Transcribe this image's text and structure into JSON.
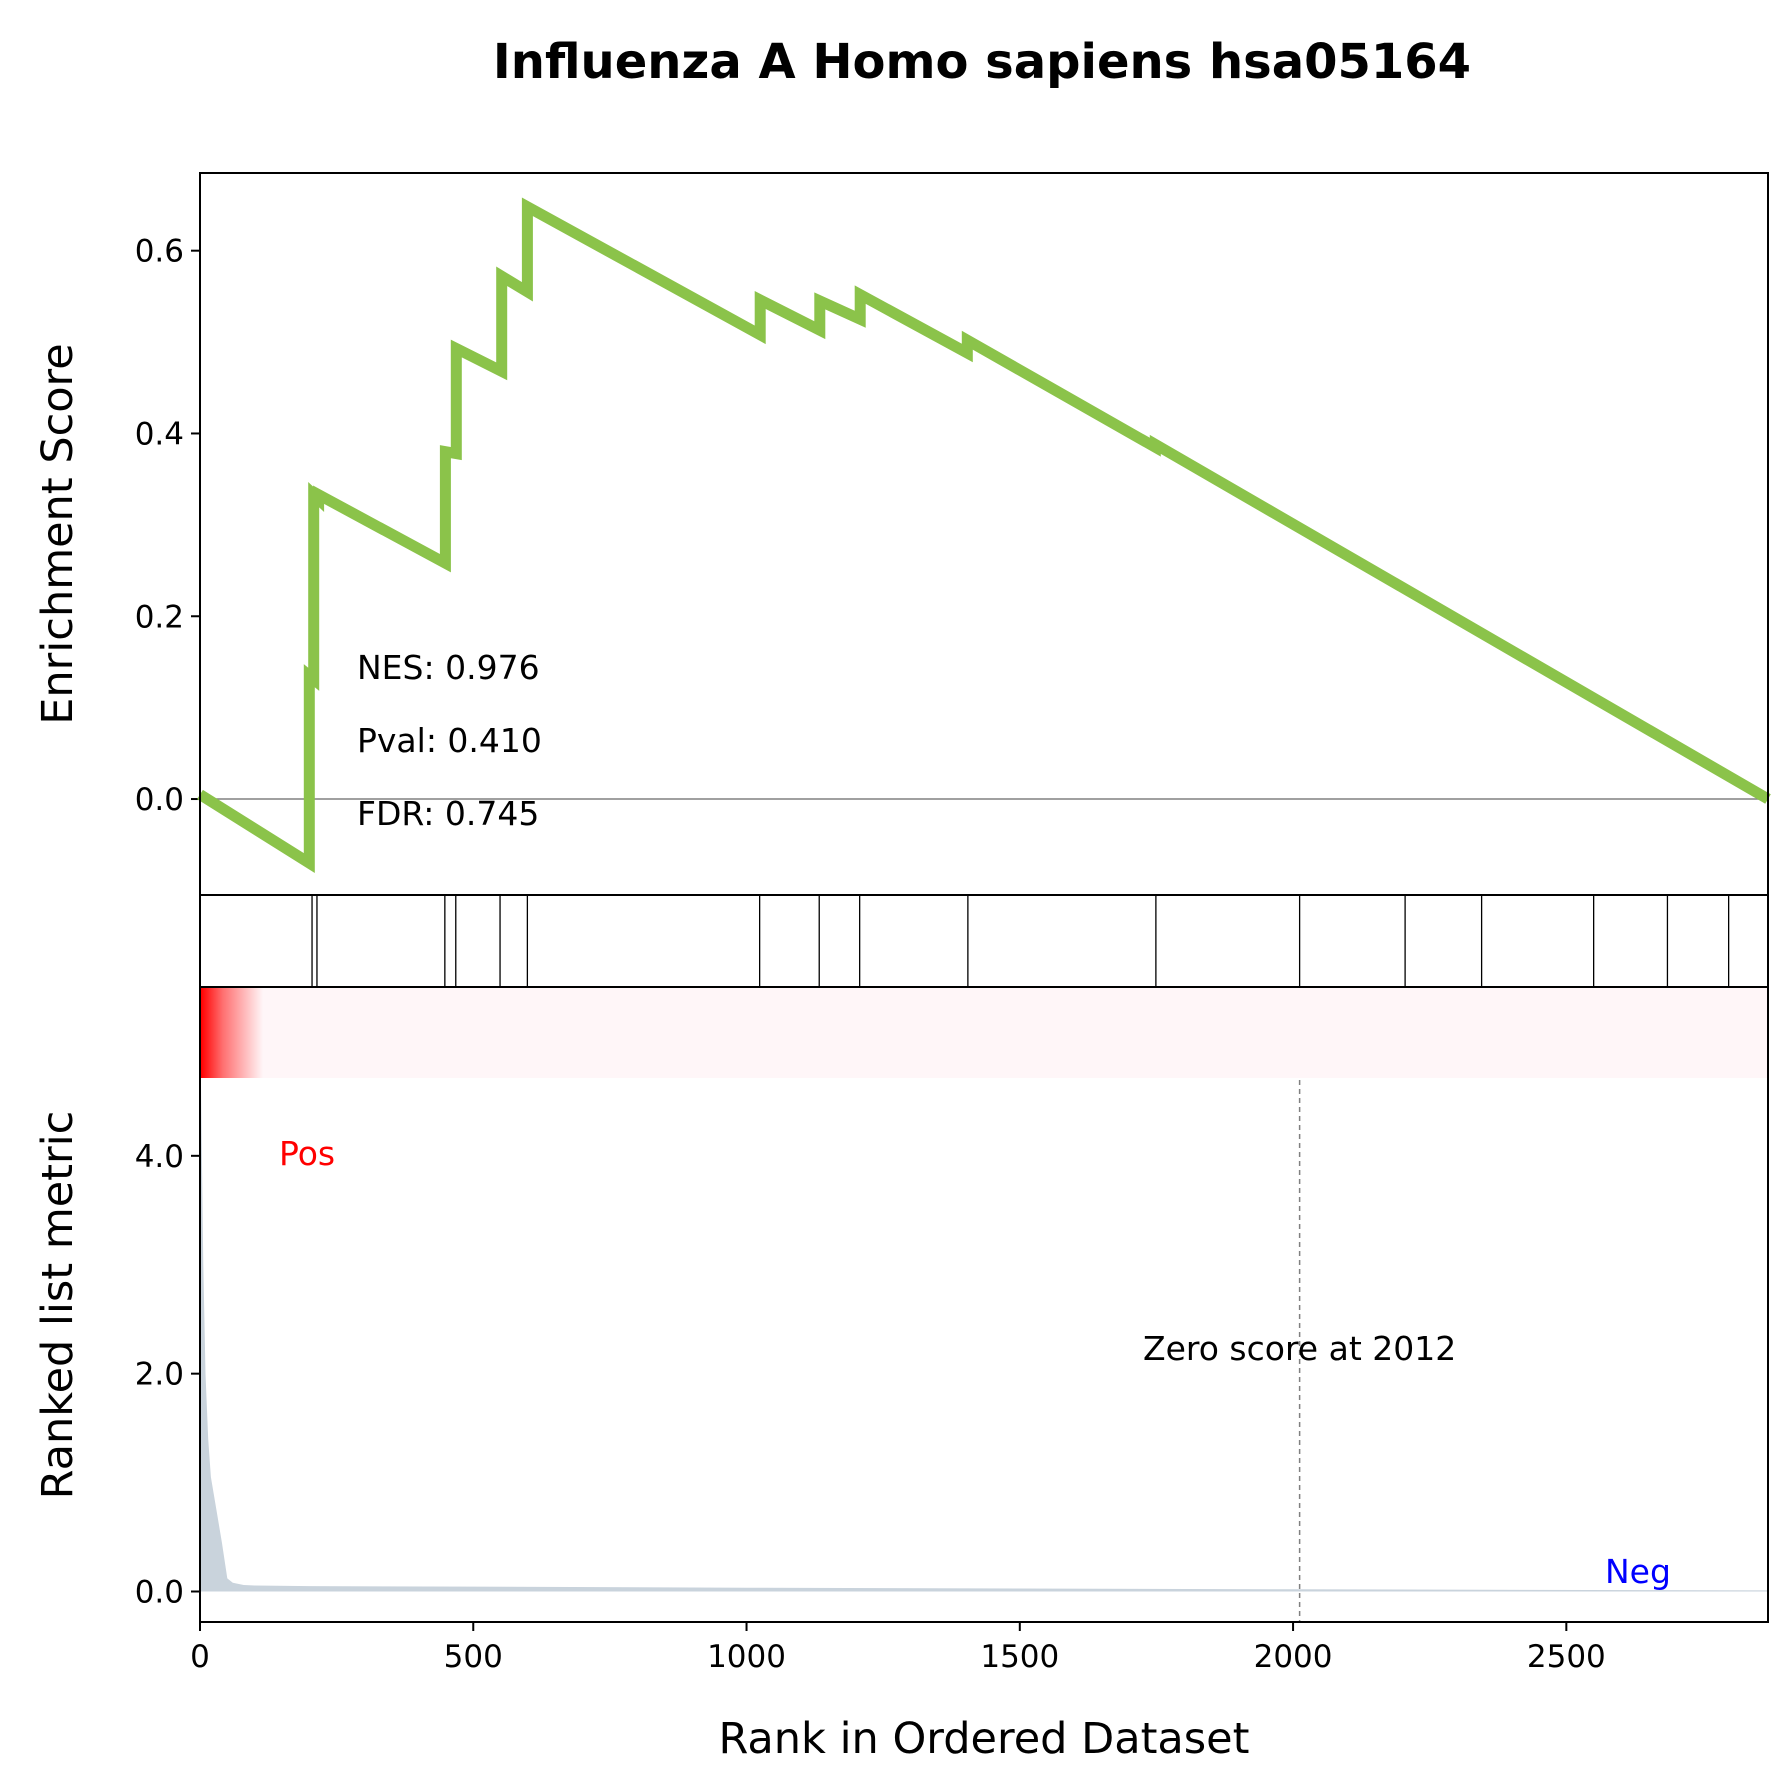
{
  "chart_data": {
    "type": "line",
    "title": "Influenza A Homo sapiens hsa05164",
    "xlabel": "Rank in Ordered Dataset",
    "xlim": [
      0,
      2869
    ],
    "x_ticks": [
      0,
      500,
      1000,
      1500,
      2000,
      2500
    ],
    "es_panel": {
      "ylabel": "Enrichment Score",
      "ylim": [
        -0.105,
        0.685
      ],
      "y_ticks": [
        0.0,
        0.2,
        0.4,
        0.6
      ],
      "y_tick_labels": [
        "0.0",
        "0.2",
        "0.4",
        "0.6"
      ],
      "zero_line": true,
      "line_color": "#8bc34a",
      "series": [
        {
          "x": [
            0,
            200,
            200,
            208,
            208,
            217,
            217,
            449,
            449,
            469,
            469,
            552,
            552,
            599,
            599,
            1025,
            1025,
            1134,
            1134,
            1208,
            1208,
            1404,
            1404,
            1748,
            1748,
            2869
          ],
          "y": [
            0.005,
            -0.07,
            0.135,
            0.131,
            0.333,
            0.328,
            0.333,
            0.258,
            0.38,
            0.378,
            0.493,
            0.468,
            0.572,
            0.555,
            0.648,
            0.508,
            0.546,
            0.513,
            0.545,
            0.525,
            0.552,
            0.488,
            0.502,
            0.385,
            0.388,
            0.0
          ]
        }
      ],
      "annotations": [
        "NES: 0.976",
        "Pval: 0.410",
        "FDR: 0.745"
      ]
    },
    "hits_panel": {
      "hit_ranks": [
        205,
        214,
        448,
        468,
        549,
        599,
        1024,
        1133,
        1207,
        1405,
        1749,
        2012,
        2205,
        2345,
        2550,
        2685,
        2797
      ]
    },
    "rank_panel": {
      "ylabel": "Ranked list metric",
      "ylim": [
        -0.28,
        5.55
      ],
      "y_ticks": [
        0.0,
        2.0,
        4.0
      ],
      "y_tick_labels": [
        "0.0",
        "2.0",
        "4.0"
      ],
      "fill_color": "#c9d3dc",
      "metric": {
        "x": [
          0,
          3,
          6,
          10,
          15,
          20,
          30,
          40,
          50,
          60,
          80,
          100,
          200,
          500,
          1000,
          2000,
          2869
        ],
        "y": [
          5.4,
          4.2,
          3.0,
          2.0,
          1.4,
          1.05,
          0.75,
          0.45,
          0.12,
          0.08,
          0.06,
          0.055,
          0.05,
          0.045,
          0.035,
          0.02,
          0.01
        ]
      },
      "zero_score_rank": 2012,
      "zero_score_label": "Zero score at 2012",
      "pos_label": "Pos",
      "neg_label": "Neg",
      "pos_color": "#ff0000",
      "neg_color": "#0000ff",
      "heat_bar_color": "#ff0000",
      "heat_bar_pale_color": "#fff6f8"
    }
  }
}
